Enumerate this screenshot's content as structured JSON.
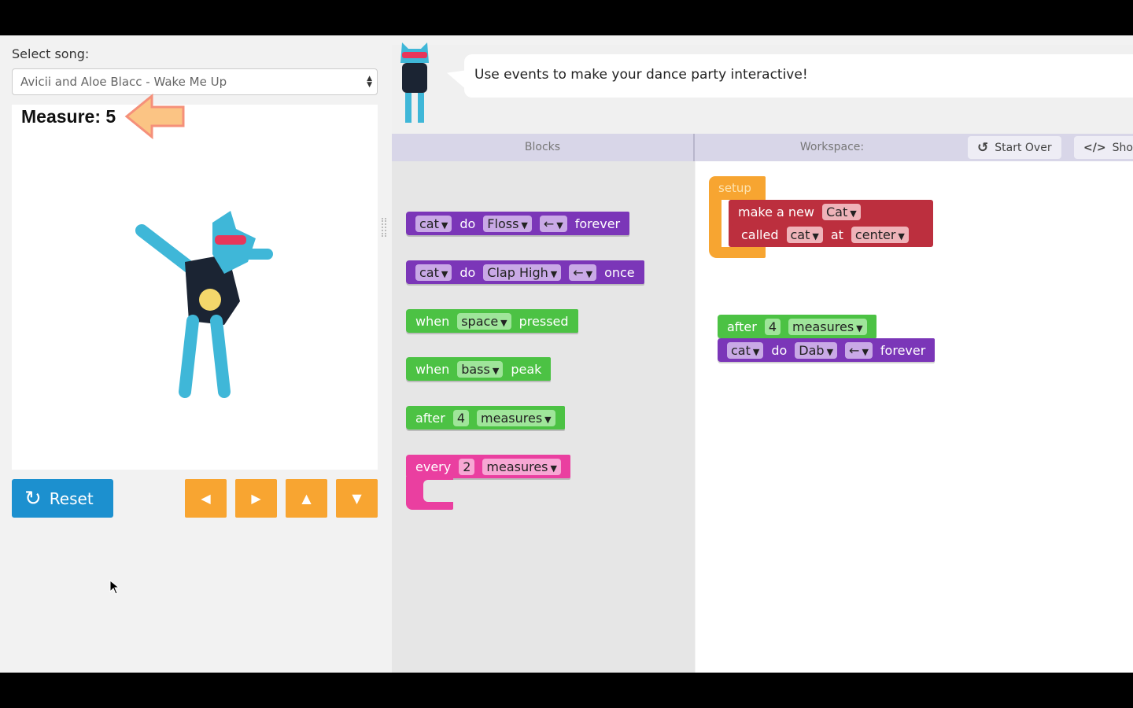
{
  "left": {
    "song_label": "Select song:",
    "song_value": "Avicii and Aloe Blacc - Wake Me Up",
    "measure": "Measure: 5",
    "reset": "Reset",
    "arrows": [
      "◀",
      "▶",
      "▲",
      "▼"
    ]
  },
  "instructions": "Use events to make your dance party interactive!",
  "header": {
    "blocks": "Blocks",
    "workspace": "Workspace:",
    "start_over": "Start Over",
    "show_code": "Show"
  },
  "toolbox": [
    {
      "color": "purple",
      "parts": [
        {
          "f": "cat"
        },
        {
          "t": "do"
        },
        {
          "f": "Floss"
        },
        {
          "f": "←"
        },
        {
          "t": "forever"
        }
      ]
    },
    {
      "color": "purple",
      "parts": [
        {
          "f": "cat"
        },
        {
          "t": "do"
        },
        {
          "f": "Clap High"
        },
        {
          "f": "←"
        },
        {
          "t": "once"
        }
      ]
    },
    {
      "color": "green",
      "parts": [
        {
          "t": "when"
        },
        {
          "f": "space"
        },
        {
          "t": "pressed"
        }
      ]
    },
    {
      "color": "green",
      "parts": [
        {
          "t": "when"
        },
        {
          "f": "bass"
        },
        {
          "t": "peak"
        }
      ]
    },
    {
      "color": "green",
      "parts": [
        {
          "t": "after"
        },
        {
          "n": "4"
        },
        {
          "f": "measures"
        }
      ]
    },
    {
      "color": "pink",
      "parts": [
        {
          "t": "every"
        },
        {
          "n": "2"
        },
        {
          "f": "measures"
        }
      ]
    }
  ],
  "workspace": {
    "setup": "setup",
    "make": [
      {
        "t": "make a new"
      },
      {
        "f": "Cat"
      }
    ],
    "called": [
      {
        "t": "called"
      },
      {
        "f": "cat"
      },
      {
        "t": "at"
      },
      {
        "f": "center"
      }
    ],
    "after": [
      {
        "t": "after"
      },
      {
        "n": "4"
      },
      {
        "f": "measures"
      }
    ],
    "dance": [
      {
        "f": "cat"
      },
      {
        "t": "do"
      },
      {
        "f": "Dab"
      },
      {
        "f": "←"
      },
      {
        "t": "forever"
      }
    ]
  },
  "colors": {
    "purple": "#7b36b8",
    "green": "#4cc244",
    "pink": "#ea3fa0",
    "red": "#bc2f3e",
    "orange": "#f7a531",
    "reset": "#1c90cf"
  }
}
